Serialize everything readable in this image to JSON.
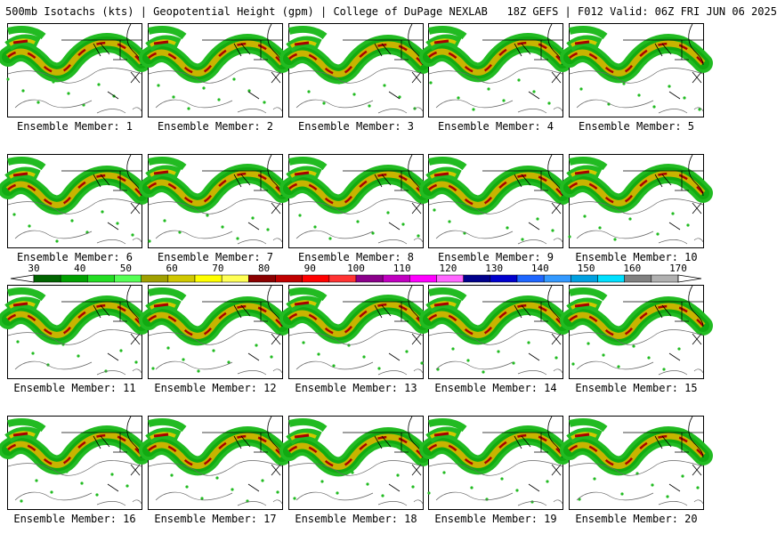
{
  "header": {
    "title": "500mb Isotachs (kts) | Geopotential Height (gpm) | College of DuPage NEXLAB   18Z GEFS | F012 Valid: 06Z FRI JUN 06 2025"
  },
  "panels": [
    {
      "label": "Ensemble Member: 1"
    },
    {
      "label": "Ensemble Member: 2"
    },
    {
      "label": "Ensemble Member: 3"
    },
    {
      "label": "Ensemble Member: 4"
    },
    {
      "label": "Ensemble Member: 5"
    },
    {
      "label": "Ensemble Member: 6"
    },
    {
      "label": "Ensemble Member: 7"
    },
    {
      "label": "Ensemble Member: 8"
    },
    {
      "label": "Ensemble Member: 9"
    },
    {
      "label": "Ensemble Member: 10"
    },
    {
      "label": "Ensemble Member: 11"
    },
    {
      "label": "Ensemble Member: 12"
    },
    {
      "label": "Ensemble Member: 13"
    },
    {
      "label": "Ensemble Member: 14"
    },
    {
      "label": "Ensemble Member: 15"
    },
    {
      "label": "Ensemble Member: 16"
    },
    {
      "label": "Ensemble Member: 17"
    },
    {
      "label": "Ensemble Member: 18"
    },
    {
      "label": "Ensemble Member: 19"
    },
    {
      "label": "Ensemble Member: 20"
    }
  ],
  "legend": {
    "tick_labels": [
      "30",
      "40",
      "50",
      "60",
      "70",
      "80",
      "90",
      "100",
      "110",
      "120",
      "130",
      "140",
      "150",
      "160",
      "170"
    ],
    "colors": [
      "#006400",
      "#00a000",
      "#22dd22",
      "#55ff55",
      "#a0a000",
      "#d0c800",
      "#ffff00",
      "#ffff55",
      "#8b0000",
      "#c00000",
      "#ff0000",
      "#ff3333",
      "#8a008a",
      "#c000c0",
      "#ff00ff",
      "#ff66ff",
      "#00008b",
      "#0000cd",
      "#1e66ff",
      "#3399ff",
      "#00a0e0",
      "#00e0ff",
      "#808080",
      "#b0b0b0"
    ]
  }
}
